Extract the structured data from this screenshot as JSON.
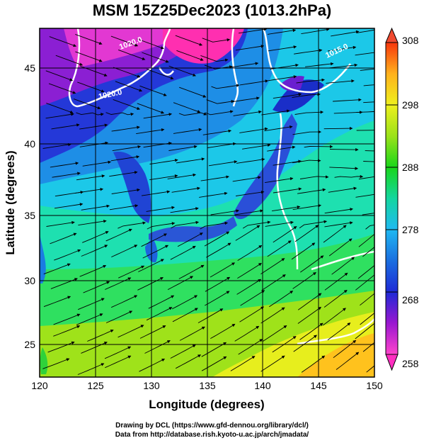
{
  "title": "MSM 15Z25Dec2023 (1013.2hPa)",
  "credit": {
    "line1": "Drawing by DCL (https://www.gfd-dennou.org/library/dcl/)",
    "line2": "Data from http://database.rish.kyoto-u.ac.jp/arch/jmadata/"
  },
  "chart_data": {
    "type": "heatmap",
    "title": "MSM 15Z25Dec2023 (1013.2hPa)",
    "xlabel": "Longitude (degrees)",
    "ylabel": "Latitude  (degrees)",
    "xlim": [
      120,
      150
    ],
    "ylim": [
      22.4,
      47.6
    ],
    "x_ticks": [
      "120",
      "125",
      "130",
      "135",
      "140",
      "145",
      "150"
    ],
    "y_ticks": [
      "25",
      "30",
      "35",
      "40",
      "45"
    ],
    "colorbar": {
      "min": 258,
      "max": 308,
      "ticks": [
        "258",
        "268",
        "278",
        "288",
        "298",
        "308"
      ],
      "colors": [
        "#ff44cc",
        "#9a17d0",
        "#1e2ad6",
        "#1fb9f2",
        "#14d6a0",
        "#19d61a",
        "#9be21a",
        "#eef01d",
        "#ffb11d",
        "#f8360c"
      ]
    },
    "grid": true,
    "contour_labels": [
      "1020.0",
      "1020.0",
      "1015.0"
    ],
    "arrows": "streamlines of horizontal wind"
  }
}
